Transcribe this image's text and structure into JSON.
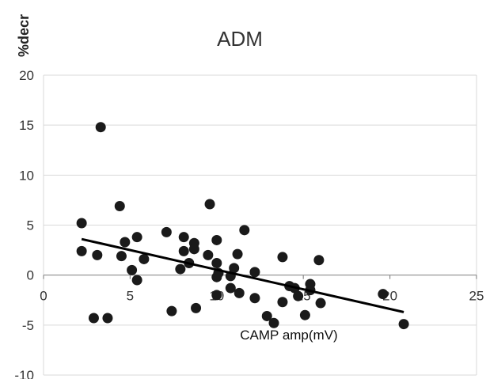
{
  "chart_data": {
    "type": "scatter",
    "title": "ADM",
    "xlabel": "CAMP amp(mV)",
    "ylabel": "%decr",
    "xlim": [
      0,
      25
    ],
    "ylim": [
      -10,
      20
    ],
    "xticks": [
      0,
      5,
      10,
      15,
      20,
      25
    ],
    "yticks": [
      -10,
      -5,
      0,
      5,
      10,
      15,
      20
    ],
    "xtick_labels": [
      "0",
      "5",
      "10",
      "15",
      "20",
      "25"
    ],
    "ytick_labels": [
      "-10",
      "-5",
      "0",
      "5",
      "10",
      "15",
      "20"
    ],
    "grid": "horizontal",
    "legend": "none",
    "point_color": "#1a1a1a",
    "trendline_color": "#000000",
    "trendline": {
      "x": [
        2.2,
        20.8
      ],
      "y": [
        3.6,
        -3.7
      ]
    },
    "points": [
      {
        "x": 3.3,
        "y": 14.8
      },
      {
        "x": 2.2,
        "y": 5.2
      },
      {
        "x": 4.4,
        "y": 6.9
      },
      {
        "x": 2.2,
        "y": 2.4
      },
      {
        "x": 3.1,
        "y": 2.0
      },
      {
        "x": 4.5,
        "y": 1.9
      },
      {
        "x": 4.7,
        "y": 3.3
      },
      {
        "x": 5.4,
        "y": 3.8
      },
      {
        "x": 5.1,
        "y": 0.5
      },
      {
        "x": 5.8,
        "y": 1.6
      },
      {
        "x": 5.4,
        "y": -0.5
      },
      {
        "x": 2.9,
        "y": -4.3
      },
      {
        "x": 3.7,
        "y": -4.3
      },
      {
        "x": 7.1,
        "y": 4.3
      },
      {
        "x": 8.1,
        "y": 3.8
      },
      {
        "x": 8.7,
        "y": 3.2
      },
      {
        "x": 8.7,
        "y": 2.6
      },
      {
        "x": 8.1,
        "y": 2.4
      },
      {
        "x": 8.4,
        "y": 1.2
      },
      {
        "x": 7.9,
        "y": 0.6
      },
      {
        "x": 9.6,
        "y": 7.1
      },
      {
        "x": 9.5,
        "y": 2.0
      },
      {
        "x": 10.0,
        "y": 3.5
      },
      {
        "x": 10.0,
        "y": 1.2
      },
      {
        "x": 10.1,
        "y": 0.2
      },
      {
        "x": 10.0,
        "y": -0.2
      },
      {
        "x": 10.0,
        "y": -2.0
      },
      {
        "x": 7.4,
        "y": -3.6
      },
      {
        "x": 8.8,
        "y": -3.3
      },
      {
        "x": 10.8,
        "y": -1.3
      },
      {
        "x": 10.8,
        "y": -0.1
      },
      {
        "x": 11.0,
        "y": 0.7
      },
      {
        "x": 11.2,
        "y": 2.1
      },
      {
        "x": 11.6,
        "y": 4.5
      },
      {
        "x": 11.3,
        "y": -1.8
      },
      {
        "x": 12.2,
        "y": 0.3
      },
      {
        "x": 12.2,
        "y": -2.3
      },
      {
        "x": 12.9,
        "y": -4.1
      },
      {
        "x": 13.3,
        "y": -4.8
      },
      {
        "x": 13.8,
        "y": 1.8
      },
      {
        "x": 13.8,
        "y": -2.7
      },
      {
        "x": 14.2,
        "y": -1.1
      },
      {
        "x": 14.5,
        "y": -1.3
      },
      {
        "x": 14.7,
        "y": -2.1
      },
      {
        "x": 15.1,
        "y": -4.0
      },
      {
        "x": 15.4,
        "y": -0.9
      },
      {
        "x": 15.4,
        "y": -1.5
      },
      {
        "x": 15.9,
        "y": 1.5
      },
      {
        "x": 16.0,
        "y": -2.8
      },
      {
        "x": 19.6,
        "y": -1.9
      },
      {
        "x": 20.8,
        "y": -4.9
      }
    ]
  }
}
